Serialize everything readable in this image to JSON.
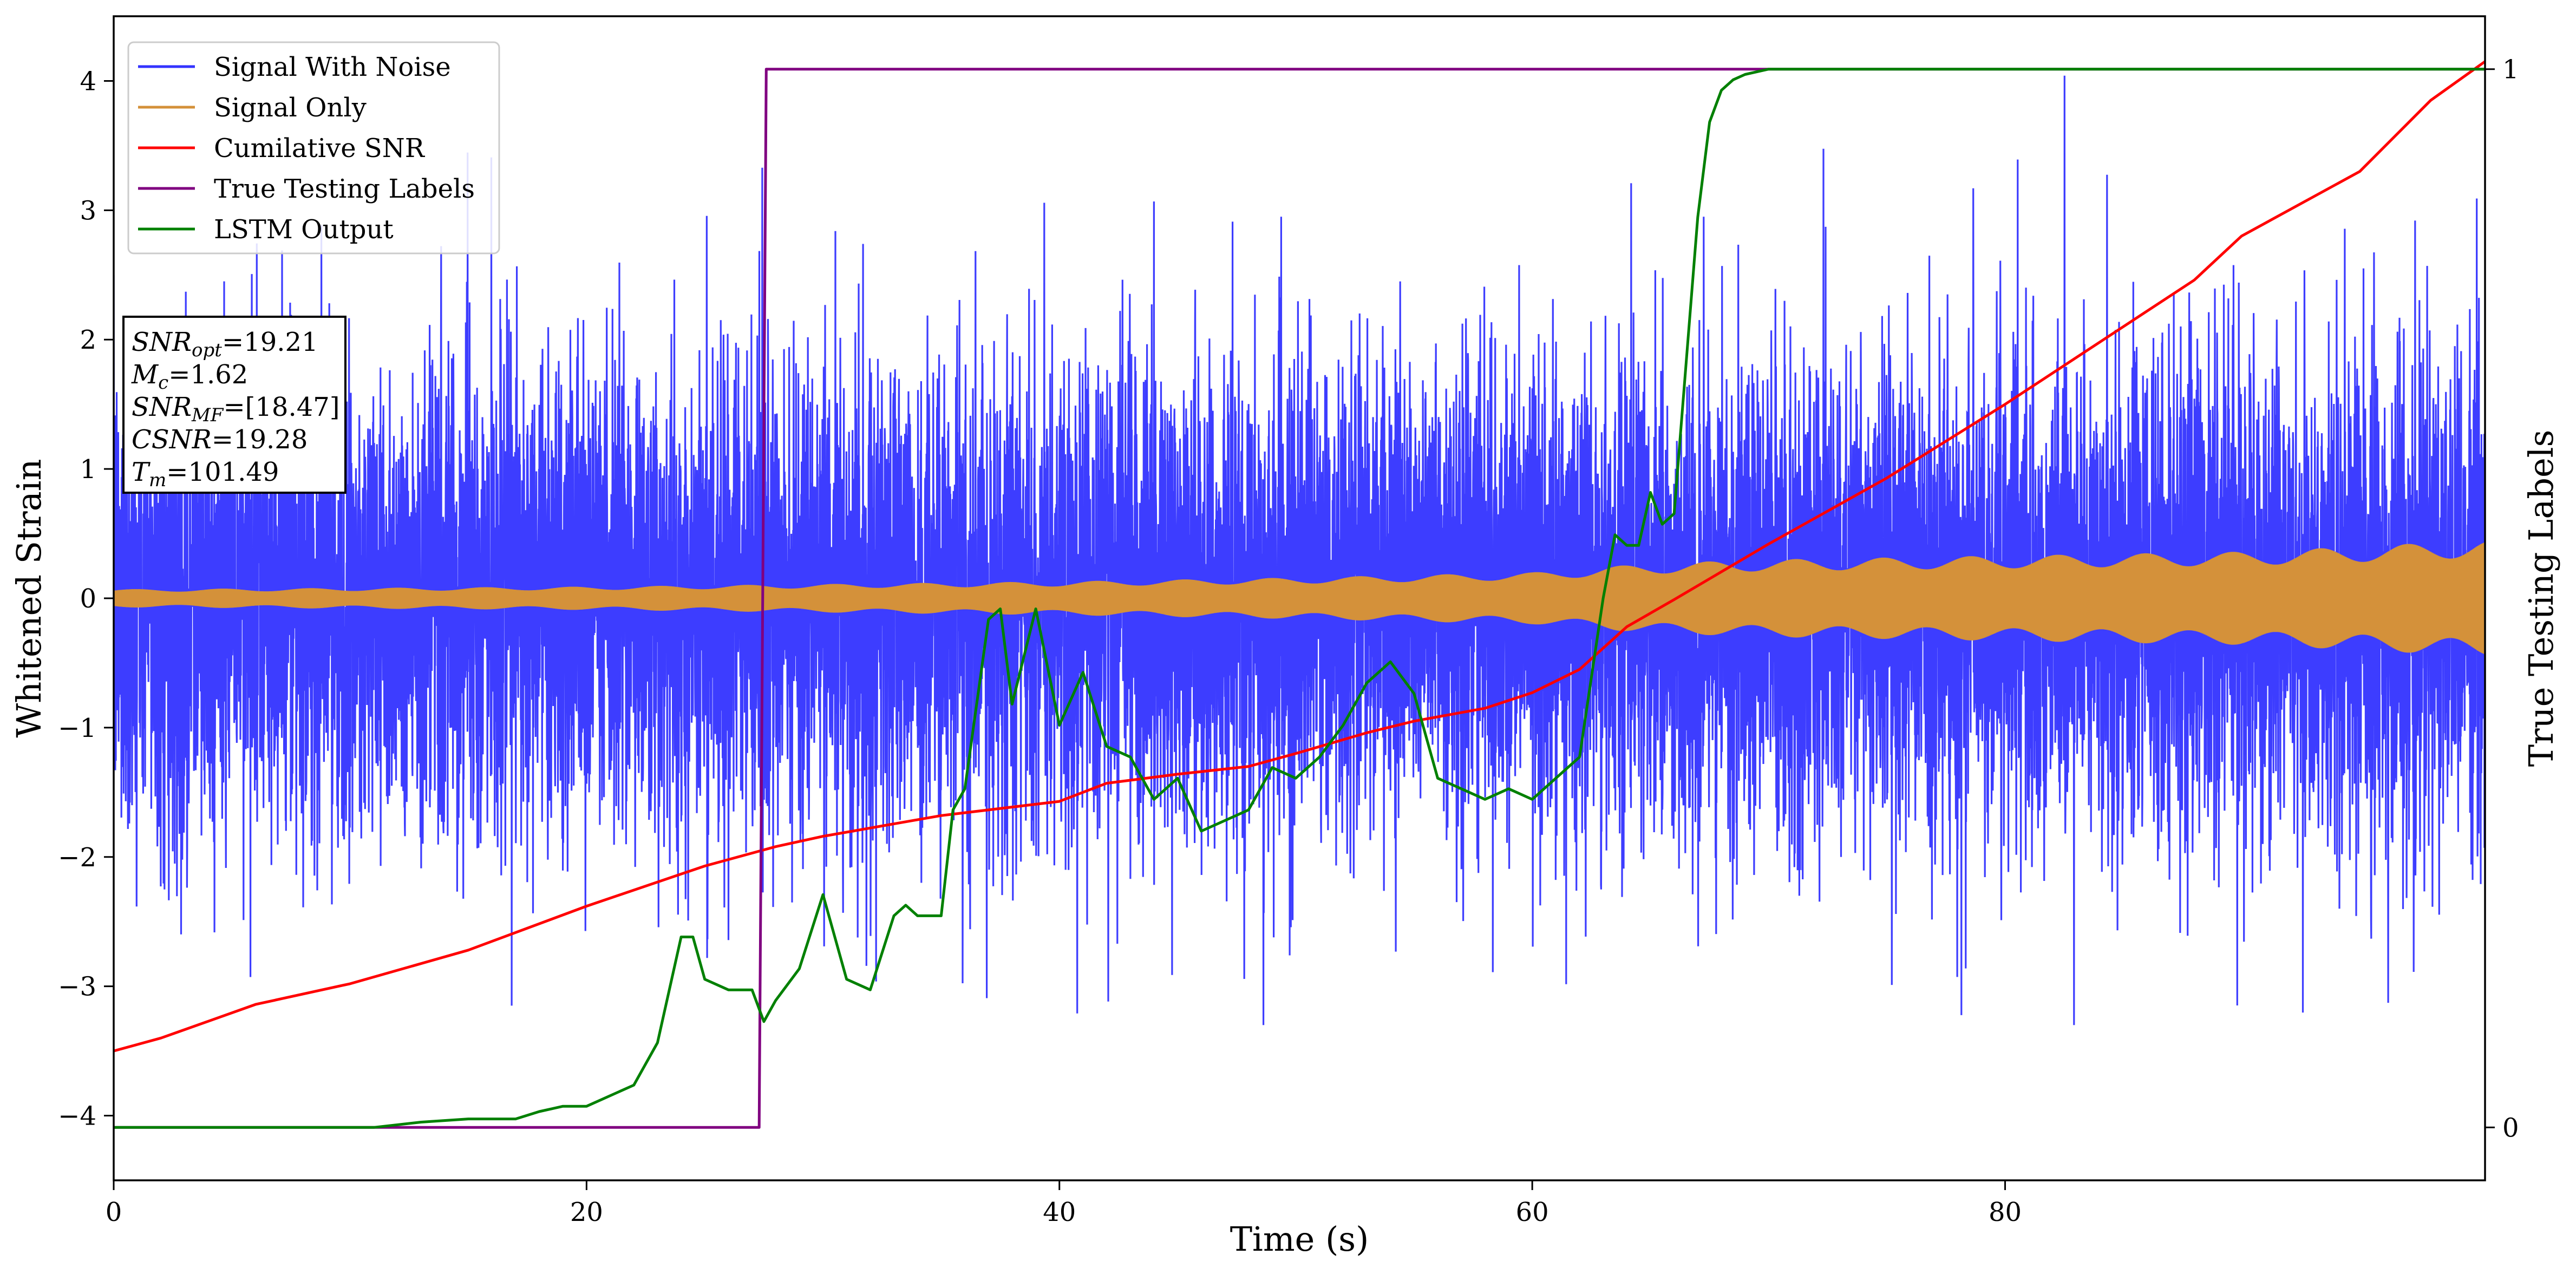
{
  "chart_data": {
    "type": "line",
    "xlabel": "Time (s)",
    "ylabel": "Whitened Strain",
    "y2label": "True Testing Labels",
    "xlim": [
      0,
      100.3
    ],
    "ylim": [
      -4.5,
      4.5
    ],
    "y2lim": [
      -0.05,
      1.05
    ],
    "xticks": [
      0,
      20,
      40,
      60,
      80
    ],
    "yticks": [
      -4,
      -3,
      -2,
      -1,
      0,
      1,
      2,
      3,
      4
    ],
    "y2ticks": [
      0,
      1
    ],
    "legend_position": "top-left",
    "grid": false,
    "series": [
      {
        "name": "Signal With Noise",
        "color": "#3333ff",
        "style": "dense-noise",
        "axis": "left",
        "notes": "noise envelope roughly between -2.7 and 3.0 throughout"
      },
      {
        "name": "Signal Only",
        "color": "#d4913a",
        "style": "chirp-band",
        "axis": "left",
        "amplitude": [
          [
            0,
            0.07
          ],
          [
            20,
            0.09
          ],
          [
            30,
            0.11
          ],
          [
            40,
            0.13
          ],
          [
            50,
            0.16
          ],
          [
            60,
            0.2
          ],
          [
            65,
            0.27
          ],
          [
            70,
            0.3
          ],
          [
            80,
            0.33
          ],
          [
            90,
            0.36
          ],
          [
            95,
            0.4
          ],
          [
            100,
            0.45
          ]
        ]
      },
      {
        "name": "Cumilative SNR",
        "color": "#ff0000",
        "axis": "left",
        "x": [
          0,
          2,
          4,
          6,
          10,
          15,
          20,
          25,
          28,
          30,
          35,
          40,
          42,
          45,
          48,
          50,
          53,
          55,
          58,
          60,
          62,
          64,
          66,
          70,
          75,
          80,
          85,
          88,
          90,
          92,
          95,
          98,
          100.3
        ],
        "y": [
          -3.5,
          -3.4,
          -3.27,
          -3.14,
          -2.98,
          -2.72,
          -2.38,
          -2.07,
          -1.92,
          -1.84,
          -1.68,
          -1.57,
          -1.43,
          -1.36,
          -1.3,
          -1.2,
          -1.04,
          -0.95,
          -0.85,
          -0.73,
          -0.55,
          -0.22,
          -0.01,
          0.42,
          0.93,
          1.5,
          2.1,
          2.46,
          2.8,
          3.0,
          3.3,
          3.85,
          4.15
        ]
      },
      {
        "name": "True Testing Labels",
        "color": "#800080",
        "axis": "right",
        "x": [
          0,
          27.3,
          27.6,
          100.3
        ],
        "y": [
          0,
          0,
          1,
          1
        ]
      },
      {
        "name": "LSTM Output",
        "color": "#008000",
        "axis": "right",
        "x": [
          0,
          11,
          13,
          15,
          17,
          18,
          19,
          20,
          22,
          23,
          24,
          24.5,
          25,
          26,
          27,
          27.5,
          28,
          29,
          30,
          31,
          32,
          33,
          33.5,
          34,
          35,
          35.5,
          36,
          37,
          37.5,
          38,
          39,
          40,
          41,
          42,
          43,
          44,
          45,
          46,
          47,
          48,
          49,
          50,
          51,
          52,
          53,
          54,
          55,
          56,
          57,
          58,
          59,
          60,
          61,
          62,
          63,
          63.5,
          64,
          64.5,
          65,
          65.5,
          66,
          67,
          67.5,
          68,
          68.5,
          69,
          70,
          72,
          100.3
        ],
        "y": [
          0,
          0,
          0.005,
          0.008,
          0.008,
          0.015,
          0.02,
          0.02,
          0.04,
          0.08,
          0.18,
          0.18,
          0.14,
          0.13,
          0.13,
          0.1,
          0.12,
          0.15,
          0.22,
          0.14,
          0.13,
          0.2,
          0.21,
          0.2,
          0.2,
          0.3,
          0.32,
          0.48,
          0.49,
          0.4,
          0.49,
          0.38,
          0.43,
          0.36,
          0.35,
          0.31,
          0.33,
          0.28,
          0.29,
          0.3,
          0.34,
          0.33,
          0.35,
          0.38,
          0.42,
          0.44,
          0.41,
          0.33,
          0.32,
          0.31,
          0.32,
          0.31,
          0.33,
          0.35,
          0.5,
          0.56,
          0.55,
          0.55,
          0.6,
          0.57,
          0.58,
          0.86,
          0.95,
          0.98,
          0.99,
          0.995,
          1.0,
          1.0,
          1.0
        ]
      }
    ],
    "annotation": {
      "lines": [
        {
          "sym": "SNR",
          "sub": "opt",
          "val": "=19.21"
        },
        {
          "sym": "M",
          "sub": "c",
          "val": "=1.62"
        },
        {
          "sym": "SNR",
          "sub": "MF",
          "val": "=[18.47]"
        },
        {
          "sym": "CSNR",
          "sub": "",
          "val": "=19.28"
        },
        {
          "sym": "T",
          "sub": "m",
          "val": "=101.49"
        }
      ]
    }
  }
}
